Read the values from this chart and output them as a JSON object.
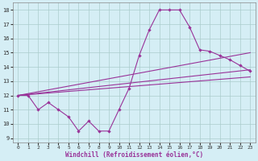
{
  "xlabel": "Windchill (Refroidissement éolien,°C)",
  "xlim": [
    -0.5,
    23.5
  ],
  "ylim": [
    8.7,
    18.5
  ],
  "yticks": [
    9,
    10,
    11,
    12,
    13,
    14,
    15,
    16,
    17,
    18
  ],
  "xticks": [
    0,
    1,
    2,
    3,
    4,
    5,
    6,
    7,
    8,
    9,
    10,
    11,
    12,
    13,
    14,
    15,
    16,
    17,
    18,
    19,
    20,
    21,
    22,
    23
  ],
  "bg_color": "#d5eef5",
  "line_color": "#993399",
  "grid_color": "#aacccc",
  "line1_x": [
    0,
    1,
    2,
    3,
    4,
    5,
    6,
    7,
    8,
    9,
    10,
    11,
    12,
    13,
    14,
    15,
    16,
    17,
    18,
    19,
    20,
    21,
    22,
    23
  ],
  "line1_y": [
    12,
    12,
    11,
    11.5,
    11,
    10.5,
    9.5,
    10.2,
    9.5,
    9.5,
    11,
    12.5,
    14.8,
    16.6,
    18,
    18,
    18,
    16.8,
    15.2,
    15.1,
    14.8,
    14.5,
    14.1,
    13.7
  ],
  "line2_x": [
    0,
    23
  ],
  "line2_y": [
    12,
    15.0
  ],
  "line3_x": [
    0,
    23
  ],
  "line3_y": [
    12,
    13.8
  ],
  "line4_x": [
    0,
    23
  ],
  "line4_y": [
    12,
    13.3
  ]
}
